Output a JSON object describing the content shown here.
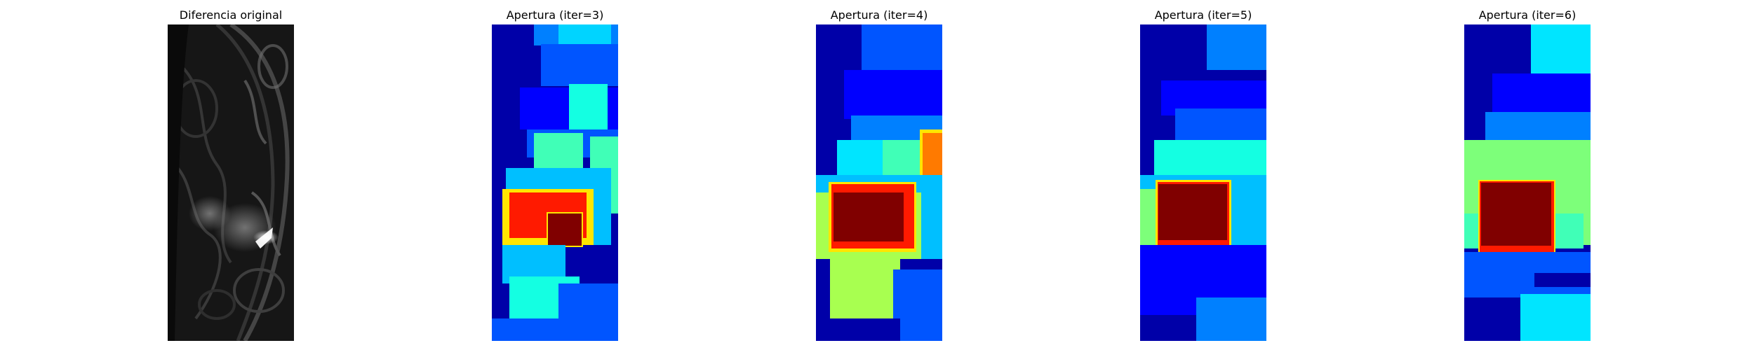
{
  "panels": [
    {
      "title": "Diferencia original",
      "colormap": "gray"
    },
    {
      "title": "Apertura (iter=3)",
      "colormap": "jet"
    },
    {
      "title": "Apertura (iter=4)",
      "colormap": "jet"
    },
    {
      "title": "Apertura (iter=5)",
      "colormap": "jet"
    },
    {
      "title": "Apertura (iter=6)",
      "colormap": "jet"
    }
  ],
  "colors": {
    "jet_dark_blue": "#00008b",
    "jet_blue": "#0000ff",
    "jet_mid_blue": "#0055ff",
    "jet_azure": "#0080ff",
    "jet_sky": "#00bfff",
    "jet_cyan": "#00e5ff",
    "jet_teal": "#14ffe2",
    "jet_aqua_green": "#40ffb7",
    "jet_green": "#7dff7a",
    "jet_yellow_green": "#a8ff50",
    "jet_yellow": "#ffe600",
    "jet_orange": "#ff7a00",
    "jet_red": "#ff1a00",
    "jet_dark_red": "#800000"
  }
}
